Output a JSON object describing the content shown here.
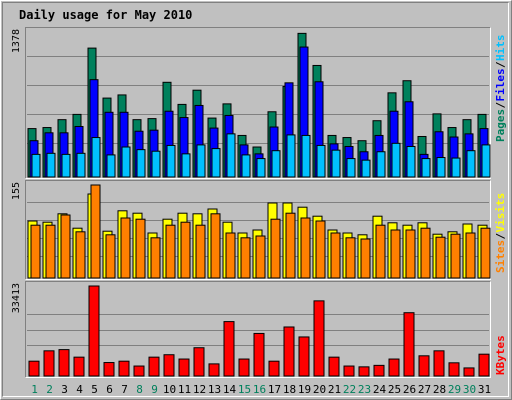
{
  "colors": {
    "background": "#c0c0c0",
    "title": "#0000ff",
    "hits": "#00c0ff",
    "files": "#0000ff",
    "pages": "#00805c",
    "visits": "#ffff00",
    "sites": "#ff8000",
    "kbytes": "#ff0000",
    "weekend_day": "#00805c",
    "weekday": "#000000"
  },
  "chart_data": {
    "type": "bar",
    "title": "Daily usage for May 2010",
    "categories": [
      "1",
      "2",
      "3",
      "4",
      "5",
      "6",
      "7",
      "8",
      "9",
      "10",
      "11",
      "12",
      "13",
      "14",
      "15",
      "16",
      "17",
      "18",
      "19",
      "20",
      "21",
      "22",
      "23",
      "24",
      "25",
      "26",
      "27",
      "28",
      "29",
      "30",
      "31"
    ],
    "weekend_days": [
      "1",
      "2",
      "8",
      "9",
      "15",
      "16",
      "22",
      "23",
      "29",
      "30"
    ],
    "panels": [
      {
        "id": "top",
        "y_max_label": "1378",
        "ylim": [
          0,
          1378
        ],
        "right_labels": [
          "Pages",
          "Files",
          "Hits"
        ],
        "series": [
          {
            "name": "Pages",
            "values": [
              460,
              470,
              545,
              595,
              1225,
              750,
              780,
              545,
              555,
              900,
              690,
              825,
              560,
              695,
              395,
              285,
              620,
              860,
              1365,
              1060,
              395,
              375,
              345,
              535,
              800,
              915,
              385,
              600,
              470,
              545,
              595
            ]
          },
          {
            "name": "Files",
            "values": [
              345,
              420,
              420,
              480,
              925,
              615,
              615,
              435,
              445,
              625,
              565,
              680,
              465,
              585,
              305,
              220,
              475,
              895,
              1235,
              905,
              315,
              290,
              240,
              395,
              625,
              715,
              215,
              430,
              380,
              410,
              460
            ]
          },
          {
            "name": "Hits",
            "values": [
              215,
              225,
              215,
              225,
              375,
              210,
              285,
              260,
              245,
              300,
              220,
              305,
              270,
              410,
              210,
              175,
              250,
              400,
              395,
              300,
              255,
              175,
              160,
              240,
              320,
              290,
              175,
              185,
              180,
              250,
              305
            ]
          }
        ]
      },
      {
        "id": "middle",
        "y_max_label": "155",
        "ylim": [
          0,
          155
        ],
        "right_labels": [
          "Sites",
          "Visits"
        ],
        "series": [
          {
            "name": "Visits",
            "values": [
              95,
              93,
              107,
              83,
              140,
              78,
              112,
              108,
              75,
              98,
              108,
              107,
              115,
              93,
              75,
              80,
              125,
              125,
              118,
              103,
              80,
              75,
              72,
              103,
              92,
              88,
              92,
              73,
              77,
              90,
              88
            ]
          },
          {
            "name": "Sites",
            "values": [
              88,
              88,
              105,
              77,
              155,
              72,
              100,
              98,
              67,
              88,
              93,
              88,
              107,
              75,
              67,
              70,
              98,
              108,
              100,
              95,
              75,
              67,
              65,
              88,
              80,
              80,
              83,
              68,
              73,
              75,
              83
            ]
          }
        ]
      },
      {
        "id": "bottom",
        "y_max_label": "33413",
        "ylim": [
          0,
          33413
        ],
        "right_labels": [
          "KBytes"
        ],
        "series": [
          {
            "name": "KBytes",
            "values": [
              5500,
              9350,
              9800,
              7000,
              33413,
              5000,
              5500,
              3700,
              7000,
              7900,
              6300,
              10500,
              4500,
              20200,
              6300,
              15800,
              5500,
              18200,
              14500,
              27900,
              7000,
              3700,
              3400,
              3950,
              6300,
              23500,
              7500,
              9350,
              4900,
              3000,
              8100
            ]
          }
        ]
      }
    ]
  }
}
